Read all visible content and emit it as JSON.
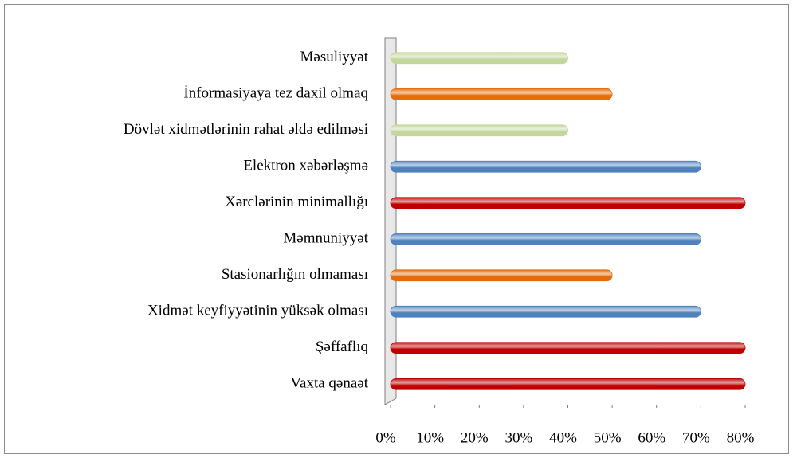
{
  "chart_data": {
    "type": "bar",
    "orientation": "horizontal",
    "categories": [
      "Məsuliyyət",
      "İnformasiyaya tez daxil olmaq",
      "Dövlət xidmətlərinin rahat əldə edilməsi",
      "Elektron xəbərləşmə",
      "Xərclərinin minimallığı",
      "Məmnuniyyət",
      "Stasionarlığın olmaması",
      "Xidmət keyfiyyətinin yüksək olması",
      "Şəffaflıq",
      "Vaxta qənaət"
    ],
    "values": [
      40,
      50,
      40,
      70,
      80,
      70,
      50,
      70,
      80,
      80
    ],
    "colors": [
      "#c3d69b",
      "#e46c0a",
      "#c3d69b",
      "#4f81bd",
      "#c00000",
      "#4f81bd",
      "#e46c0a",
      "#4f81bd",
      "#c00000",
      "#c00000"
    ],
    "xlim": [
      0,
      80
    ],
    "xticks": [
      {
        "value": 0,
        "label": "0%"
      },
      {
        "value": 10,
        "label": "10%"
      },
      {
        "value": 20,
        "label": "20%"
      },
      {
        "value": 30,
        "label": "30%"
      },
      {
        "value": 40,
        "label": "40%"
      },
      {
        "value": 50,
        "label": "50%"
      },
      {
        "value": 60,
        "label": "60%"
      },
      {
        "value": 70,
        "label": "70%"
      },
      {
        "value": 80,
        "label": "80%"
      }
    ],
    "grid": false
  }
}
